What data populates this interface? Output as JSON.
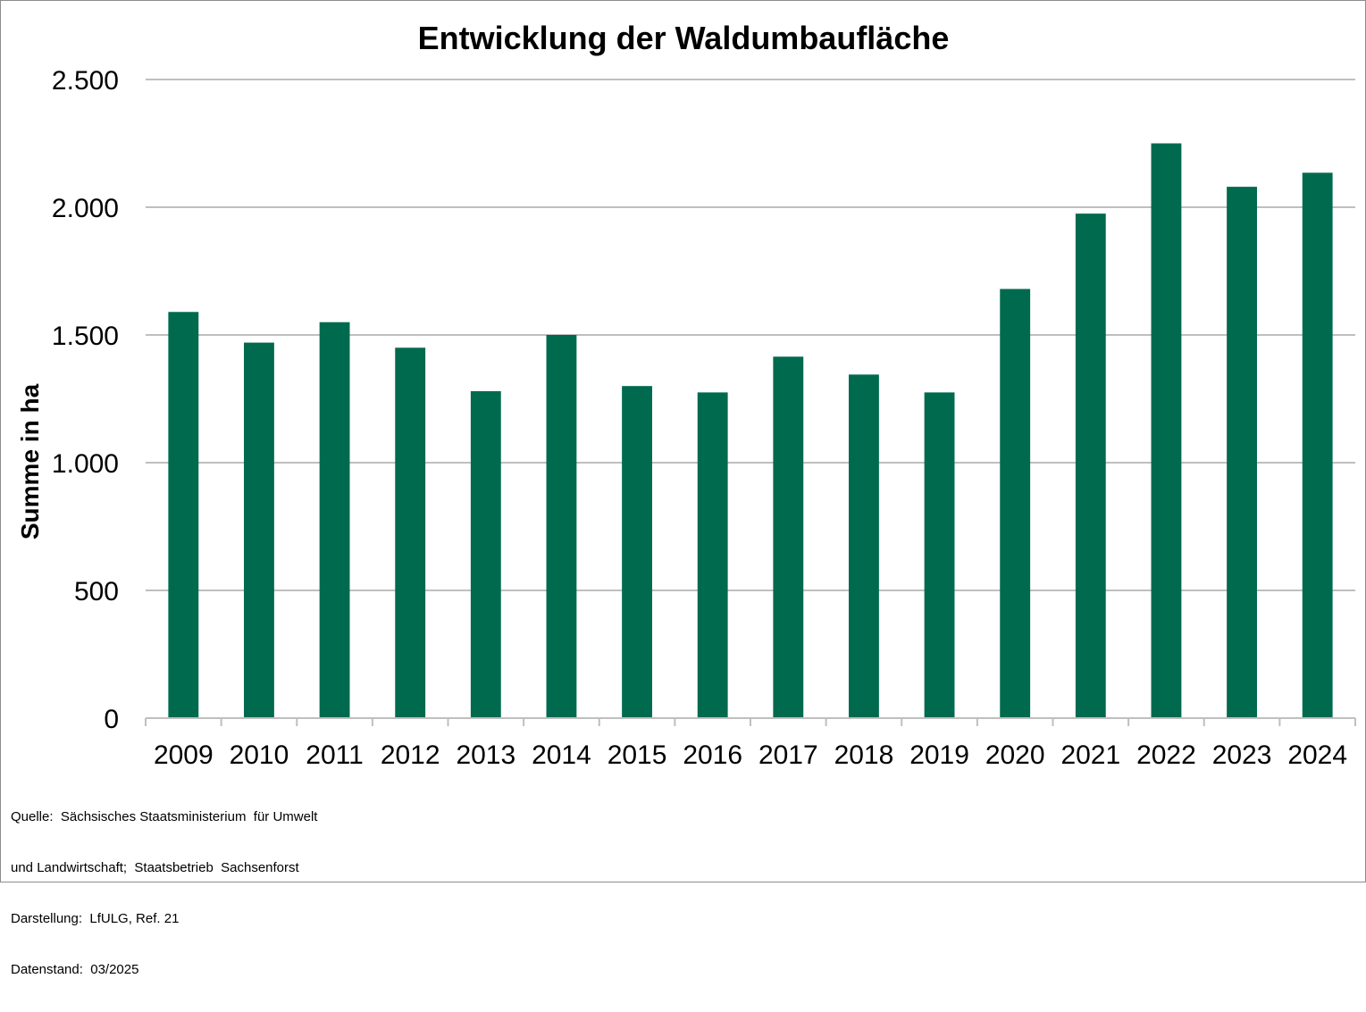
{
  "chart_data": {
    "type": "bar",
    "title": "Entwicklung der Waldumbaufläche",
    "xlabel": "",
    "ylabel": "Summe in ha",
    "categories": [
      "2009",
      "2010",
      "2011",
      "2012",
      "2013",
      "2014",
      "2015",
      "2016",
      "2017",
      "2018",
      "2019",
      "2020",
      "2021",
      "2022",
      "2023",
      "2024"
    ],
    "values": [
      1590,
      1470,
      1550,
      1450,
      1280,
      1500,
      1300,
      1275,
      1415,
      1345,
      1275,
      1680,
      1975,
      2250,
      2080,
      2135
    ],
    "ylim": [
      0,
      2500
    ],
    "yticks": [
      0,
      500,
      1000,
      1500,
      2000,
      2500
    ],
    "ytick_labels": [
      "0",
      "500",
      "1.000",
      "1.500",
      "2.000",
      "2.500"
    ],
    "grid": true,
    "legend": "none",
    "bar_color": "#006a4e",
    "grid_color": "#bfbfbf"
  },
  "footnote": {
    "line1": "Quelle:  Sächsisches Staatsministerium  für Umwelt",
    "line2": "und Landwirtschaft;  Staatsbetrieb  Sachsenforst",
    "line3": "Darstellung:  LfULG, Ref. 21",
    "line4": "Datenstand:  03/2025"
  }
}
